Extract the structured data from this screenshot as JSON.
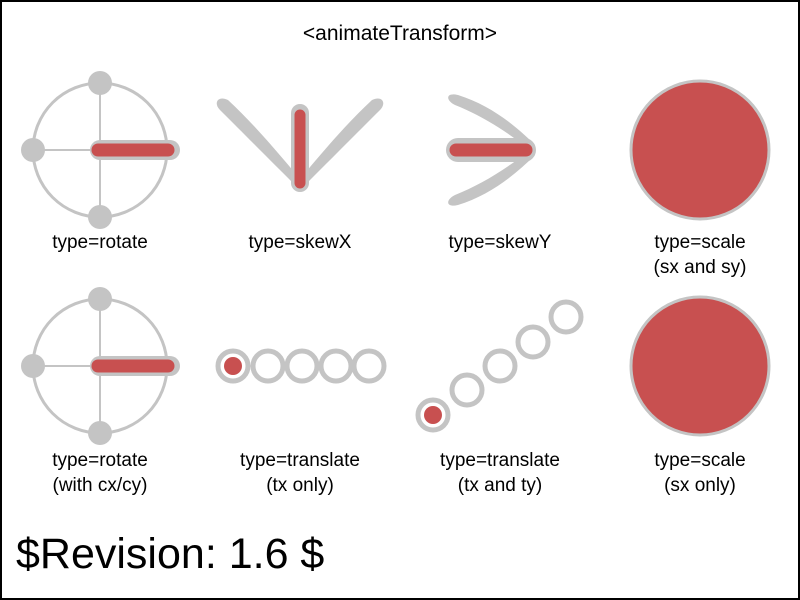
{
  "title": "<animateTransform>",
  "revision": "$Revision: 1.6 $",
  "colors": {
    "accent": "#c85050",
    "ghost": "#c4c4c4",
    "frame": "#000000",
    "background": "#ffffff"
  },
  "cells": [
    {
      "id": "rotate",
      "lines": [
        "type=rotate"
      ]
    },
    {
      "id": "skewx",
      "lines": [
        "type=skewX"
      ]
    },
    {
      "id": "skewy",
      "lines": [
        "type=skewY"
      ]
    },
    {
      "id": "scale",
      "lines": [
        "type=scale",
        "(sx and sy)"
      ]
    },
    {
      "id": "rotate-center",
      "lines": [
        "type=rotate",
        "(with cx/cy)"
      ]
    },
    {
      "id": "translate-tx",
      "lines": [
        "type=translate",
        "(tx only)"
      ]
    },
    {
      "id": "translate-txty",
      "lines": [
        "type=translate",
        "(tx and ty)"
      ]
    },
    {
      "id": "scale-sx",
      "lines": [
        "type=scale",
        "(sx only)"
      ]
    }
  ]
}
